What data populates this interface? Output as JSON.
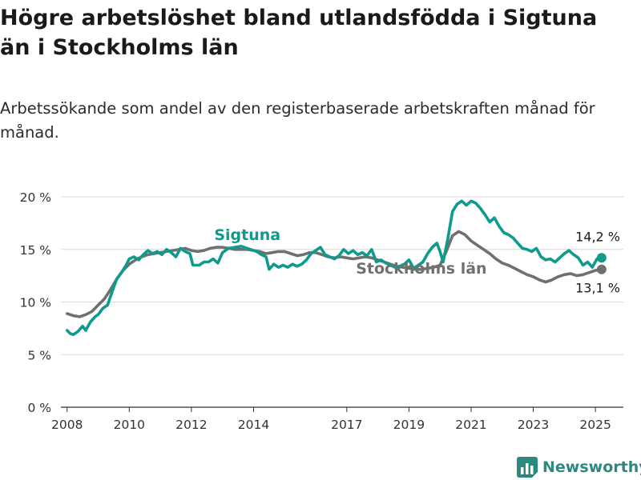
{
  "title": "Högre arbetslöshet bland utlandsfödda i Sigtuna än i Stockholms län",
  "subtitle": "Arbetssökande som andel av den registerbaserade arbetskraften månad för månad.",
  "brand": {
    "name": "Newsworthy",
    "icon": "bar-chart-logo-icon"
  },
  "colors": {
    "sigtuna": "#0f9a8c",
    "lan": "#707070",
    "grid": "#d9d9d9",
    "axis": "#333333"
  },
  "chart_data": {
    "type": "line",
    "xlim": [
      2007.8,
      2025.9
    ],
    "ylim": [
      0,
      20
    ],
    "y_ticks": [
      {
        "value": 0,
        "label": "0 %"
      },
      {
        "value": 5,
        "label": "5 %"
      },
      {
        "value": 10,
        "label": "10 %"
      },
      {
        "value": 15,
        "label": "15 %"
      },
      {
        "value": 20,
        "label": "20 %"
      }
    ],
    "x_ticks": [
      {
        "value": 2008,
        "label": "2008"
      },
      {
        "value": 2010,
        "label": "2010"
      },
      {
        "value": 2012,
        "label": "2012"
      },
      {
        "value": 2014,
        "label": "2014"
      },
      {
        "value": 2017,
        "label": "2017"
      },
      {
        "value": 2019,
        "label": "2019"
      },
      {
        "value": 2021,
        "label": "2021"
      },
      {
        "value": 2023,
        "label": "2023"
      },
      {
        "value": 2025,
        "label": "2025"
      }
    ],
    "grid": true,
    "series": [
      {
        "name": "Stockholms län",
        "color": "#707070",
        "end_label": "13,1 %",
        "points": [
          [
            2008.0,
            8.9
          ],
          [
            2008.2,
            8.7
          ],
          [
            2008.4,
            8.6
          ],
          [
            2008.6,
            8.8
          ],
          [
            2008.8,
            9.1
          ],
          [
            2009.0,
            9.7
          ],
          [
            2009.2,
            10.3
          ],
          [
            2009.4,
            11.2
          ],
          [
            2009.6,
            12.2
          ],
          [
            2009.8,
            13.0
          ],
          [
            2010.0,
            13.6
          ],
          [
            2010.2,
            14.0
          ],
          [
            2010.4,
            14.3
          ],
          [
            2010.6,
            14.5
          ],
          [
            2010.8,
            14.6
          ],
          [
            2011.0,
            14.7
          ],
          [
            2011.2,
            14.8
          ],
          [
            2011.4,
            14.9
          ],
          [
            2011.6,
            15.0
          ],
          [
            2011.8,
            15.1
          ],
          [
            2012.0,
            14.9
          ],
          [
            2012.2,
            14.8
          ],
          [
            2012.4,
            14.9
          ],
          [
            2012.6,
            15.1
          ],
          [
            2012.8,
            15.2
          ],
          [
            2013.0,
            15.2
          ],
          [
            2013.2,
            15.1
          ],
          [
            2013.4,
            15.0
          ],
          [
            2013.6,
            15.0
          ],
          [
            2013.8,
            15.0
          ],
          [
            2014.0,
            14.9
          ],
          [
            2014.2,
            14.8
          ],
          [
            2014.4,
            14.6
          ],
          [
            2014.6,
            14.7
          ],
          [
            2014.8,
            14.8
          ],
          [
            2015.0,
            14.8
          ],
          [
            2015.2,
            14.6
          ],
          [
            2015.4,
            14.4
          ],
          [
            2015.6,
            14.5
          ],
          [
            2015.8,
            14.7
          ],
          [
            2016.0,
            14.7
          ],
          [
            2016.2,
            14.5
          ],
          [
            2016.4,
            14.3
          ],
          [
            2016.6,
            14.2
          ],
          [
            2016.8,
            14.3
          ],
          [
            2017.0,
            14.2
          ],
          [
            2017.2,
            14.1
          ],
          [
            2017.4,
            14.2
          ],
          [
            2017.6,
            14.3
          ],
          [
            2017.8,
            14.2
          ],
          [
            2018.0,
            14.0
          ],
          [
            2018.2,
            13.8
          ],
          [
            2018.4,
            13.6
          ],
          [
            2018.6,
            13.4
          ],
          [
            2018.8,
            13.3
          ],
          [
            2019.0,
            13.2
          ],
          [
            2019.2,
            13.1
          ],
          [
            2019.4,
            13.1
          ],
          [
            2019.6,
            13.2
          ],
          [
            2019.8,
            13.3
          ],
          [
            2020.0,
            13.5
          ],
          [
            2020.2,
            14.8
          ],
          [
            2020.4,
            16.3
          ],
          [
            2020.6,
            16.7
          ],
          [
            2020.8,
            16.4
          ],
          [
            2021.0,
            15.8
          ],
          [
            2021.2,
            15.4
          ],
          [
            2021.4,
            15.0
          ],
          [
            2021.6,
            14.6
          ],
          [
            2021.8,
            14.1
          ],
          [
            2022.0,
            13.7
          ],
          [
            2022.2,
            13.5
          ],
          [
            2022.4,
            13.2
          ],
          [
            2022.6,
            12.9
          ],
          [
            2022.8,
            12.6
          ],
          [
            2023.0,
            12.4
          ],
          [
            2023.2,
            12.1
          ],
          [
            2023.4,
            11.9
          ],
          [
            2023.6,
            12.1
          ],
          [
            2023.8,
            12.4
          ],
          [
            2024.0,
            12.6
          ],
          [
            2024.2,
            12.7
          ],
          [
            2024.4,
            12.5
          ],
          [
            2024.6,
            12.6
          ],
          [
            2024.8,
            12.8
          ],
          [
            2025.0,
            13.0
          ],
          [
            2025.2,
            13.1
          ]
        ]
      },
      {
        "name": "Sigtuna",
        "color": "#0f9a8c",
        "end_label": "14,2 %",
        "points": [
          [
            2008.0,
            7.3
          ],
          [
            2008.1,
            7.0
          ],
          [
            2008.2,
            6.9
          ],
          [
            2008.35,
            7.2
          ],
          [
            2008.5,
            7.7
          ],
          [
            2008.6,
            7.3
          ],
          [
            2008.75,
            8.1
          ],
          [
            2008.9,
            8.6
          ],
          [
            2009.0,
            8.8
          ],
          [
            2009.15,
            9.4
          ],
          [
            2009.3,
            9.7
          ],
          [
            2009.45,
            11.0
          ],
          [
            2009.6,
            12.2
          ],
          [
            2009.75,
            12.8
          ],
          [
            2009.9,
            13.5
          ],
          [
            2010.0,
            14.1
          ],
          [
            2010.15,
            14.3
          ],
          [
            2010.3,
            14.0
          ],
          [
            2010.45,
            14.5
          ],
          [
            2010.6,
            14.9
          ],
          [
            2010.75,
            14.6
          ],
          [
            2010.9,
            14.8
          ],
          [
            2011.05,
            14.5
          ],
          [
            2011.2,
            15.0
          ],
          [
            2011.35,
            14.7
          ],
          [
            2011.5,
            14.3
          ],
          [
            2011.65,
            15.1
          ],
          [
            2011.8,
            14.8
          ],
          [
            2011.95,
            14.6
          ],
          [
            2012.05,
            13.5
          ],
          [
            2012.25,
            13.5
          ],
          [
            2012.4,
            13.8
          ],
          [
            2012.55,
            13.8
          ],
          [
            2012.7,
            14.1
          ],
          [
            2012.85,
            13.7
          ],
          [
            2013.0,
            14.7
          ],
          [
            2013.2,
            15.1
          ],
          [
            2013.4,
            15.2
          ],
          [
            2013.6,
            15.3
          ],
          [
            2013.8,
            15.1
          ],
          [
            2014.0,
            14.9
          ],
          [
            2014.1,
            14.8
          ],
          [
            2014.25,
            14.5
          ],
          [
            2014.4,
            14.3
          ],
          [
            2014.5,
            13.1
          ],
          [
            2014.65,
            13.6
          ],
          [
            2014.8,
            13.3
          ],
          [
            2014.95,
            13.5
          ],
          [
            2015.1,
            13.3
          ],
          [
            2015.25,
            13.6
          ],
          [
            2015.4,
            13.4
          ],
          [
            2015.55,
            13.6
          ],
          [
            2015.7,
            14.0
          ],
          [
            2015.85,
            14.6
          ],
          [
            2016.0,
            14.9
          ],
          [
            2016.15,
            15.2
          ],
          [
            2016.3,
            14.5
          ],
          [
            2016.45,
            14.3
          ],
          [
            2016.6,
            14.1
          ],
          [
            2016.75,
            14.4
          ],
          [
            2016.9,
            15.0
          ],
          [
            2017.05,
            14.6
          ],
          [
            2017.2,
            14.9
          ],
          [
            2017.35,
            14.5
          ],
          [
            2017.5,
            14.7
          ],
          [
            2017.65,
            14.4
          ],
          [
            2017.8,
            15.0
          ],
          [
            2017.95,
            13.8
          ],
          [
            2018.1,
            14.0
          ],
          [
            2018.25,
            13.7
          ],
          [
            2018.4,
            13.5
          ],
          [
            2018.55,
            13.3
          ],
          [
            2018.7,
            13.4
          ],
          [
            2018.85,
            13.6
          ],
          [
            2019.0,
            14.0
          ],
          [
            2019.15,
            13.2
          ],
          [
            2019.3,
            13.5
          ],
          [
            2019.45,
            13.8
          ],
          [
            2019.6,
            14.6
          ],
          [
            2019.75,
            15.2
          ],
          [
            2019.9,
            15.6
          ],
          [
            2020.0,
            14.8
          ],
          [
            2020.1,
            13.8
          ],
          [
            2020.25,
            16.0
          ],
          [
            2020.4,
            18.6
          ],
          [
            2020.55,
            19.3
          ],
          [
            2020.7,
            19.6
          ],
          [
            2020.85,
            19.2
          ],
          [
            2021.0,
            19.6
          ],
          [
            2021.15,
            19.4
          ],
          [
            2021.3,
            18.9
          ],
          [
            2021.45,
            18.3
          ],
          [
            2021.6,
            17.6
          ],
          [
            2021.75,
            18.0
          ],
          [
            2021.9,
            17.2
          ],
          [
            2022.05,
            16.6
          ],
          [
            2022.2,
            16.4
          ],
          [
            2022.35,
            16.1
          ],
          [
            2022.5,
            15.6
          ],
          [
            2022.65,
            15.1
          ],
          [
            2022.8,
            15.0
          ],
          [
            2022.95,
            14.8
          ],
          [
            2023.1,
            15.1
          ],
          [
            2023.25,
            14.3
          ],
          [
            2023.4,
            14.0
          ],
          [
            2023.55,
            14.1
          ],
          [
            2023.7,
            13.8
          ],
          [
            2023.85,
            14.2
          ],
          [
            2024.0,
            14.6
          ],
          [
            2024.15,
            14.9
          ],
          [
            2024.3,
            14.5
          ],
          [
            2024.45,
            14.2
          ],
          [
            2024.6,
            13.5
          ],
          [
            2024.75,
            13.8
          ],
          [
            2024.9,
            13.3
          ],
          [
            2025.05,
            14.1
          ],
          [
            2025.2,
            14.2
          ]
        ]
      }
    ],
    "labels": [
      {
        "series": "Sigtuna",
        "text": "Sigtuna",
        "at": [
          2013.8,
          15.9
        ]
      },
      {
        "series": "Stockholms län",
        "text": "Stockholms län",
        "at": [
          2019.4,
          12.7
        ]
      }
    ],
    "blanks": [
      [
        2012.95,
        13.95,
        14.4,
        16.0
      ],
      [
        2015.95,
        16.55,
        13.7,
        16.0
      ],
      [
        2018.2,
        20.1,
        12.2,
        13.6
      ],
      [
        2018.2,
        20.1,
        13.9,
        16.0
      ]
    ]
  }
}
